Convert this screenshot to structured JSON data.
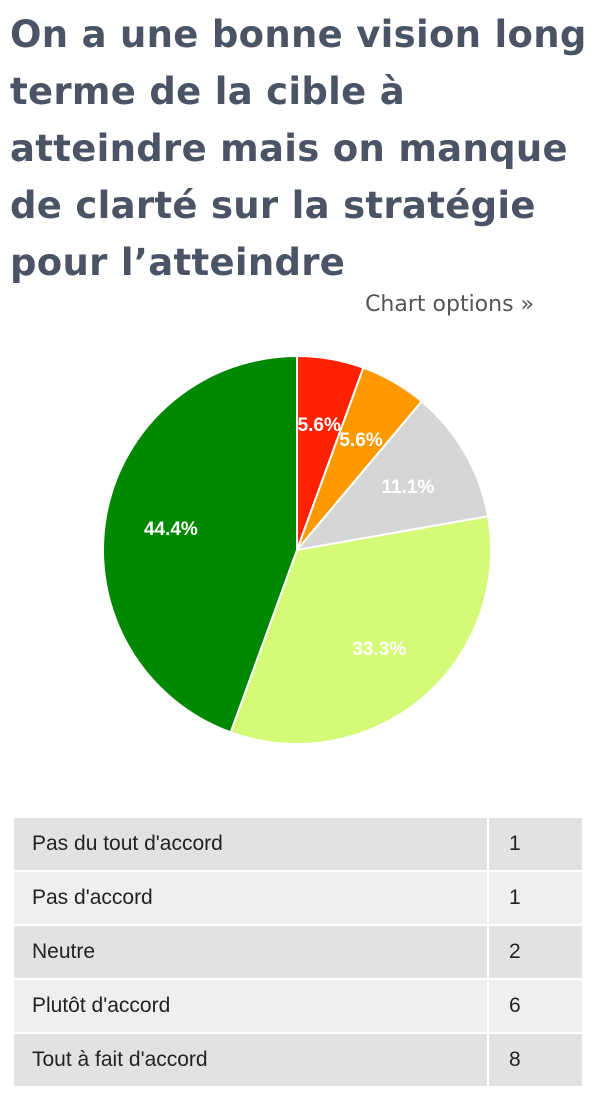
{
  "title": "On a une bonne vision long terme de la cible à atteindre mais on manque de clarté sur la stratégie pour l’atteindre",
  "options_link": "Chart options »",
  "chart_data": {
    "type": "pie",
    "slices": [
      {
        "label": "Pas du tout d'accord",
        "value": 1,
        "percent_label": "5.6%",
        "color": "#ff2200"
      },
      {
        "label": "Pas d'accord",
        "value": 1,
        "percent_label": "5.6%",
        "color": "#ff9900"
      },
      {
        "label": "Neutre",
        "value": 2,
        "percent_label": "11.1%",
        "color": "#d6d6d6"
      },
      {
        "label": "Plutôt d'accord",
        "value": 6,
        "percent_label": "33.3%",
        "color": "#d4fa78"
      },
      {
        "label": "Tout à fait d'accord",
        "value": 8,
        "percent_label": "44.4%",
        "color": "#008800"
      }
    ]
  },
  "table": {
    "rows": [
      {
        "label": "Pas du tout d'accord",
        "value": "1"
      },
      {
        "label": "Pas d'accord",
        "value": "1"
      },
      {
        "label": "Neutre",
        "value": "2"
      },
      {
        "label": "Plutôt d'accord",
        "value": "6"
      },
      {
        "label": "Tout à fait d'accord",
        "value": "8"
      }
    ]
  }
}
